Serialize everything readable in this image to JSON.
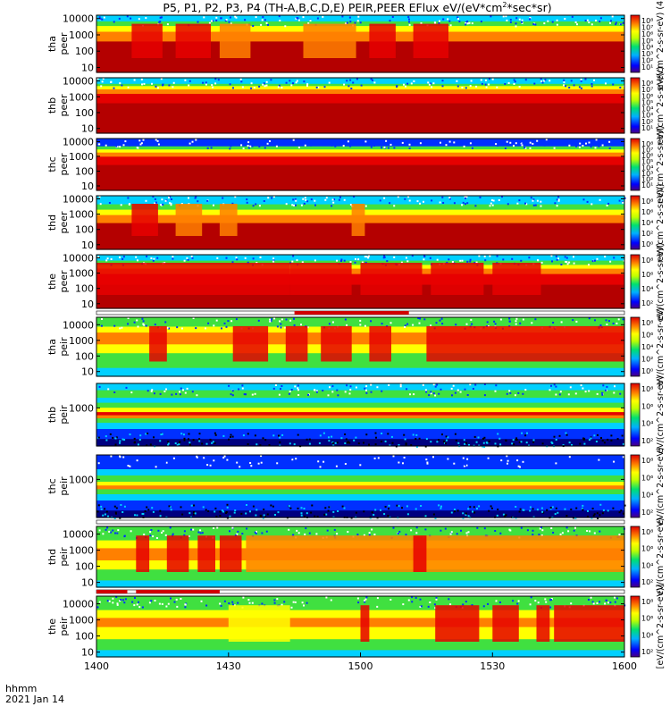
{
  "chart_data": {
    "type": "heatmap",
    "title": "P5, P1, P2, P3, P4 (TH-A,B,C,D,E) PEIR,PEER EFlux eV/(eV*cm²*sec*sr)",
    "title_parts": {
      "prefix": "P5, P1, P2, P3, P4 (TH-A,B,C,D,E) PEIR,PEER EFlux eV/(eV*cm",
      "sup": "2",
      "suffix": "*sec*sr)"
    },
    "x_ticks": [
      "1400",
      "1430",
      "1500",
      "1530",
      "1600"
    ],
    "x_range_minutes": [
      0,
      120
    ],
    "footer": {
      "line1": "hhmm",
      "line2": "2021 Jan 14"
    },
    "colorbar_unit": "eV/(cm^2-s-sr-eV)",
    "panels": [
      {
        "label1": "tha",
        "label2": "peer",
        "yticks": [
          "10000",
          "1000",
          "100",
          "10"
        ],
        "ylog": [
          5,
          16000
        ],
        "cb_ticks": [
          "10⁸",
          "10⁷",
          "10⁶",
          "10⁵",
          "10⁴",
          "10³",
          "10²",
          "10¹"
        ],
        "cb_label": "eV/(cm^2-s-sr-eV) (4)",
        "bar_after": false
      },
      {
        "label1": "thb",
        "label2": "peer",
        "yticks": [
          "10000",
          "1000",
          "100",
          "10"
        ],
        "ylog": [
          5,
          16000
        ],
        "cb_ticks": [
          "10⁸",
          "10⁷",
          "10⁶",
          "10⁵",
          "10⁴",
          "10³",
          "10²",
          "10¹"
        ],
        "cb_label": "eV/(cm^2-s-sr-eV)",
        "bar_after": false
      },
      {
        "label1": "thc",
        "label2": "peer",
        "yticks": [
          "10000",
          "1000",
          "100",
          "10"
        ],
        "ylog": [
          5,
          16000
        ],
        "cb_ticks": [
          "10⁸",
          "10⁷",
          "10⁶",
          "10⁵",
          "10⁴",
          "10³",
          "10²",
          "10¹"
        ],
        "cb_label": "eV/(cm^2-s-sr-eV)",
        "bar_after": false
      },
      {
        "label1": "thd",
        "label2": "peer",
        "yticks": [
          "10000",
          "1000",
          "100",
          "10"
        ],
        "ylog": [
          5,
          16000
        ],
        "cb_ticks": [
          "10⁸",
          "10⁶",
          "10⁴",
          "10²",
          "10⁰"
        ],
        "cb_label": "eV/(cm^2-s-sr-eV)",
        "bar_after": false
      },
      {
        "label1": "the",
        "label2": "peer",
        "yticks": [
          "10000",
          "1000",
          "100",
          "10"
        ],
        "ylog": [
          5,
          16000
        ],
        "cb_ticks": [
          "10⁸",
          "10⁶",
          "10⁴",
          "10²"
        ],
        "cb_label": "eV/(cm^2-s-sr-eV)",
        "bar_after": true
      },
      {
        "label1": "tha",
        "label2": "peir",
        "yticks": [
          "10000",
          "1000",
          "100",
          "10"
        ],
        "ylog": [
          5,
          30000
        ],
        "cb_ticks": [
          "10⁸",
          "10⁶",
          "10⁴",
          "10²",
          "10⁰"
        ],
        "cb_label": "eV/(cm^2-s-sr-eV)",
        "bar_after": false
      },
      {
        "label1": "thb",
        "label2": "peir",
        "yticks": [
          "1000"
        ],
        "ylog": [
          5,
          30000
        ],
        "cb_ticks": [
          "10⁸",
          "10⁶",
          "10⁴",
          "10²"
        ],
        "cb_label": "eV/(cm^2-s-sr-eV)",
        "bar_after": false
      },
      {
        "label1": "thc",
        "label2": "peir",
        "yticks": [
          "1000"
        ],
        "ylog": [
          5,
          30000
        ],
        "cb_ticks": [
          "10⁸",
          "10⁶",
          "10⁴",
          "10²"
        ],
        "cb_label": "eV/(cm^2-s-sr-eV)",
        "bar_after": true
      },
      {
        "label1": "thd",
        "label2": "peir",
        "yticks": [
          "10000",
          "1000",
          "100",
          "10"
        ],
        "ylog": [
          5,
          30000
        ],
        "cb_ticks": [
          "10⁸",
          "10⁶",
          "10⁴",
          "10²"
        ],
        "cb_label": "eV/(cm^2-s-sr-eV)",
        "bar_after": true
      },
      {
        "label1": "the",
        "label2": "peir",
        "yticks": [
          "10000",
          "1000",
          "100",
          "10"
        ],
        "ylog": [
          5,
          30000
        ],
        "cb_ticks": [
          "10⁸",
          "10⁶",
          "10⁴",
          "10²"
        ],
        "cb_label": "[eV/(cm^2-s-sr-eV)]",
        "bar_after": false
      }
    ],
    "colors": {
      "deep_red": "#b40000",
      "red": "#e60000",
      "orange": "#ff8000",
      "yellow": "#ffff00",
      "green": "#40e040",
      "cyan": "#00d0ff",
      "blue": "#0030ff",
      "navy": "#000080",
      "flag_red": "#d00000"
    }
  }
}
